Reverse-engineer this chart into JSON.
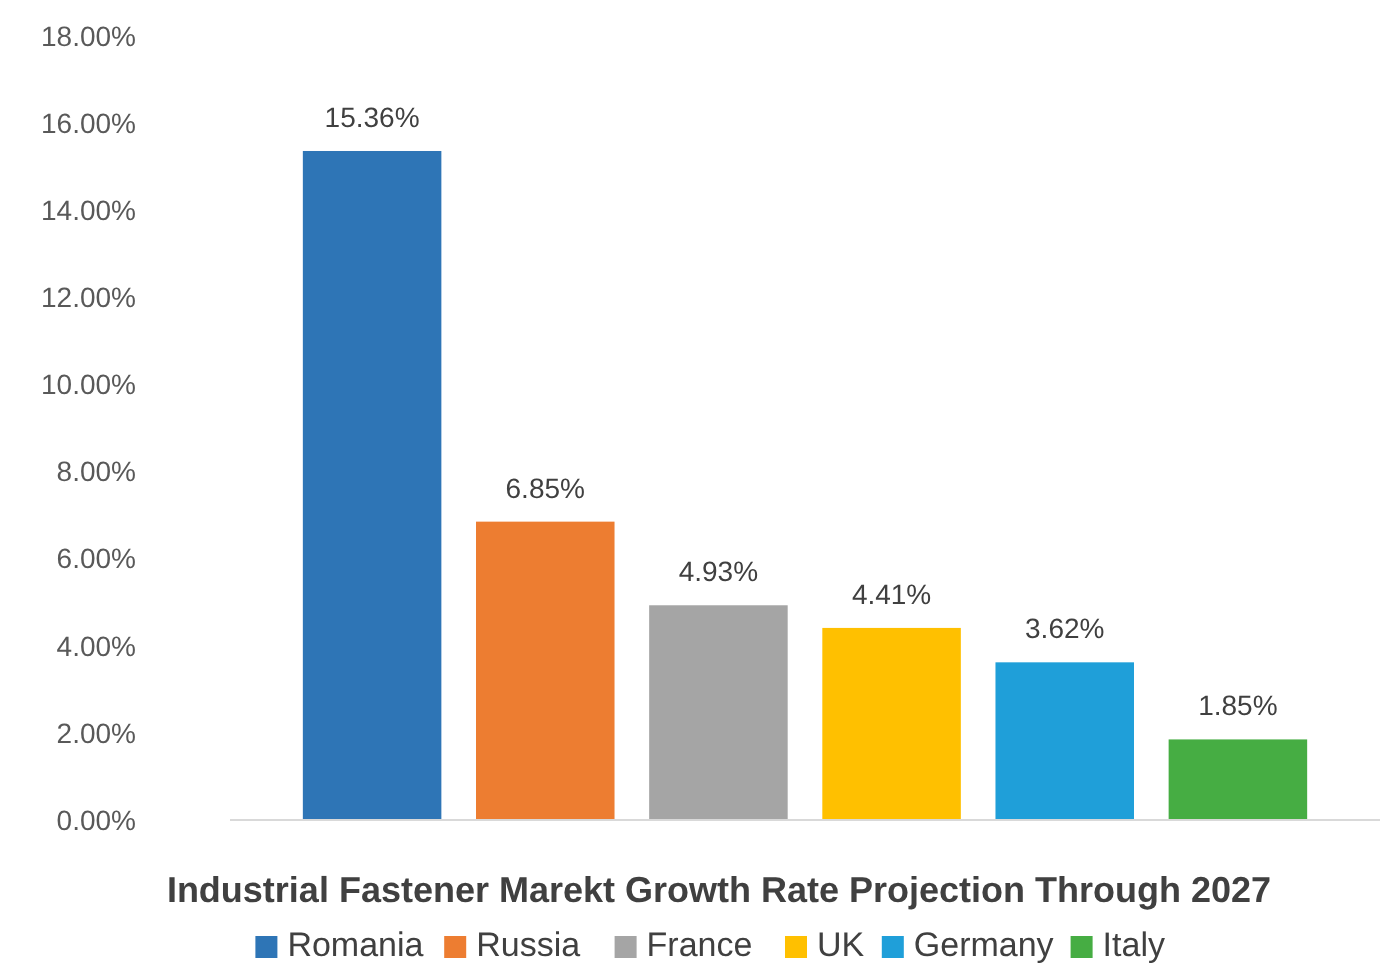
{
  "chart_data": {
    "type": "bar",
    "title": "Industrial Fastener Marekt Growth Rate Projection Through 2027",
    "categories": [
      null
    ],
    "series": [
      {
        "name": "Romania",
        "color": "#2e75b6",
        "values": [
          15.36
        ],
        "value_labels": [
          "15.36%"
        ]
      },
      {
        "name": "Russia",
        "color": "#ed7d31",
        "values": [
          6.85
        ],
        "value_labels": [
          "6.85%"
        ]
      },
      {
        "name": "France",
        "color": "#a5a5a5",
        "values": [
          4.93
        ],
        "value_labels": [
          "4.93%"
        ]
      },
      {
        "name": "UK",
        "color": "#ffc000",
        "values": [
          4.41
        ],
        "value_labels": [
          "4.41%"
        ]
      },
      {
        "name": "Germany",
        "color": "#1f9fd9",
        "values": [
          3.62
        ],
        "value_labels": [
          "3.62%"
        ]
      },
      {
        "name": "Italy",
        "color": "#46ad43",
        "values": [
          1.85
        ],
        "value_labels": [
          "1.85%"
        ]
      }
    ],
    "ylim": [
      0,
      18
    ],
    "yticks": [
      {
        "value": 0,
        "label": "0.00%"
      },
      {
        "value": 2,
        "label": "2.00%"
      },
      {
        "value": 4,
        "label": "4.00%"
      },
      {
        "value": 6,
        "label": "6.00%"
      },
      {
        "value": 8,
        "label": "8.00%"
      },
      {
        "value": 10,
        "label": "10.00%"
      },
      {
        "value": 12,
        "label": "12.00%"
      },
      {
        "value": 14,
        "label": "14.00%"
      },
      {
        "value": 16,
        "label": "16.00%"
      },
      {
        "value": 18,
        "label": "18.00%"
      }
    ],
    "grid": false,
    "legend": "bottom"
  }
}
